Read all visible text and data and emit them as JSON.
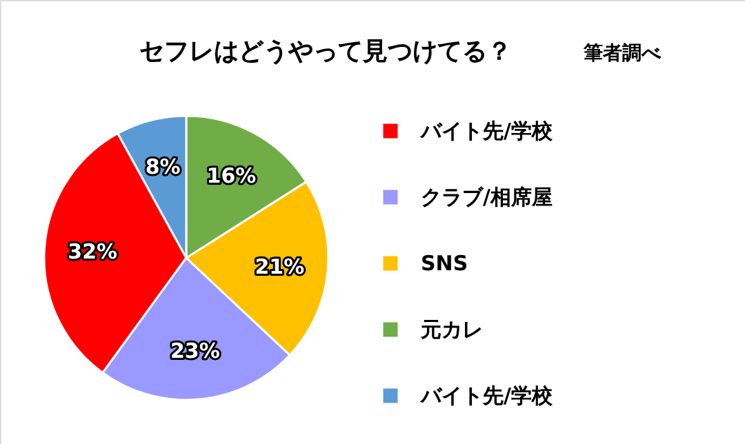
{
  "chart_data": {
    "type": "pie",
    "title": "セフレはどうやって見つけてる？",
    "annotations": [
      "筆者調べ"
    ],
    "categories": [
      "バイト先/学校",
      "クラブ/相席屋",
      "SNS",
      "元カレ",
      "バイト先/学校"
    ],
    "values": [
      32,
      23,
      21,
      16,
      8
    ],
    "colors": [
      "#ff0000",
      "#9999ff",
      "#ffc000",
      "#70ad47",
      "#5b9bd5"
    ],
    "value_labels": [
      "32%",
      "23%",
      "21%",
      "16%",
      "8%"
    ],
    "legend": "right"
  }
}
